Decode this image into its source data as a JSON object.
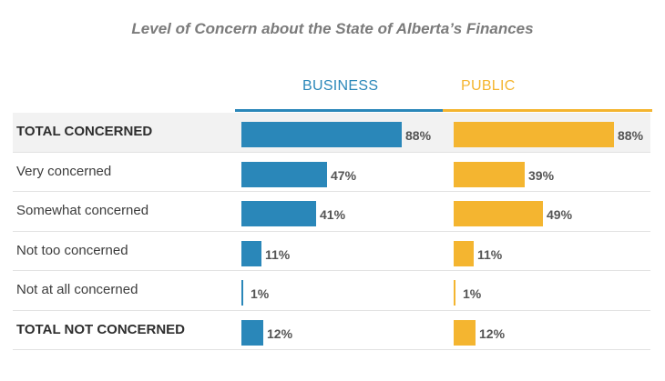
{
  "chart_data": {
    "type": "bar",
    "orientation": "horizontal",
    "title": "Level of Concern about the State of Alberta’s Finances",
    "categories": [
      "TOTAL CONCERNED",
      "Very concerned",
      "Somewhat concerned",
      "Not too concerned",
      "Not at all concerned",
      "TOTAL NOT CONCERNED"
    ],
    "bold_categories": [
      "TOTAL CONCERNED",
      "TOTAL NOT CONCERNED"
    ],
    "series": [
      {
        "name": "BUSINESS",
        "color": "#2a87b9",
        "values": [
          88,
          47,
          41,
          11,
          1,
          12
        ],
        "labels": [
          "88%",
          "47%",
          "41%",
          "11%",
          "1%",
          "12%"
        ]
      },
      {
        "name": "PUBLIC",
        "color": "#f4b530",
        "values": [
          88,
          39,
          49,
          11,
          1,
          12
        ],
        "labels": [
          "88%",
          "39%",
          "49%",
          "11%",
          "1%",
          "12%"
        ]
      }
    ],
    "xlim": [
      0,
      100
    ],
    "unit": "%"
  }
}
